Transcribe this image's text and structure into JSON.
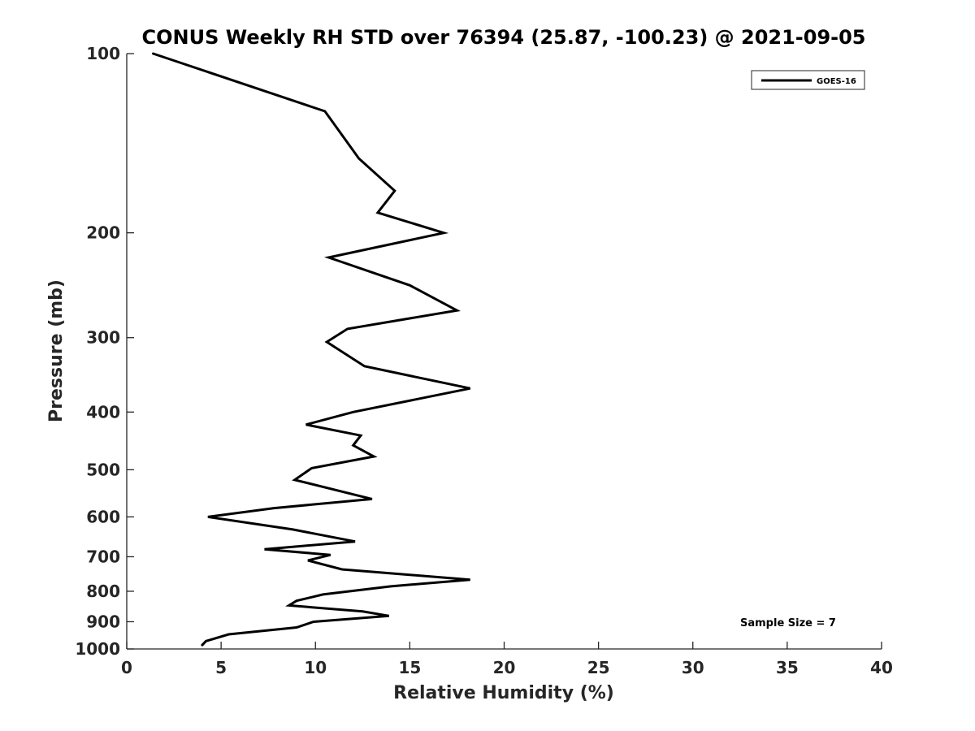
{
  "chart_data": {
    "type": "line",
    "title": "CONUS Weekly RH STD over 76394 (25.87, -100.23) @ 2021-09-05",
    "xlabel": "Relative Humidity (%)",
    "ylabel": "Pressure (mb)",
    "xlim": [
      0,
      40
    ],
    "ylim": [
      100,
      1000
    ],
    "yscale": "log",
    "y_reversed": true,
    "grid": false,
    "x_ticks": [
      0,
      5,
      10,
      15,
      20,
      25,
      30,
      35,
      40
    ],
    "x_tick_labels": [
      "0",
      "5",
      "10",
      "15",
      "20",
      "25",
      "30",
      "35",
      "40"
    ],
    "y_ticks": [
      100,
      200,
      300,
      400,
      500,
      600,
      700,
      800,
      900,
      1000
    ],
    "y_tick_labels": [
      "100",
      "200",
      "300",
      "400",
      "500",
      "600",
      "700",
      "800",
      "900",
      "1000"
    ],
    "legend": {
      "placement": "top-right",
      "entries": [
        "GOES-16"
      ]
    },
    "annotation": "Sample Size = 7",
    "series": [
      {
        "name": "GOES-16",
        "color": "#000000",
        "x": [
          1.4,
          10.5,
          12.3,
          14.2,
          13.3,
          16.8,
          10.7,
          15.0,
          17.5,
          11.7,
          10.6,
          12.6,
          18.2,
          12.0,
          9.5,
          12.4,
          12.0,
          13.1,
          9.8,
          8.9,
          13.0,
          7.8,
          4.3,
          8.8,
          12.1,
          7.3,
          10.8,
          9.6,
          11.4,
          18.2,
          14.0,
          10.4,
          9.0,
          8.6,
          12.5,
          13.9,
          9.9,
          9.0,
          5.4,
          4.2,
          4.0
        ],
        "y": [
          100,
          125,
          150,
          170,
          185,
          200,
          220,
          245,
          270,
          290,
          305,
          335,
          365,
          400,
          420,
          438,
          455,
          475,
          497,
          520,
          560,
          580,
          600,
          630,
          660,
          680,
          695,
          710,
          735,
          765,
          785,
          810,
          830,
          845,
          865,
          880,
          900,
          920,
          945,
          970,
          985
        ]
      }
    ]
  }
}
